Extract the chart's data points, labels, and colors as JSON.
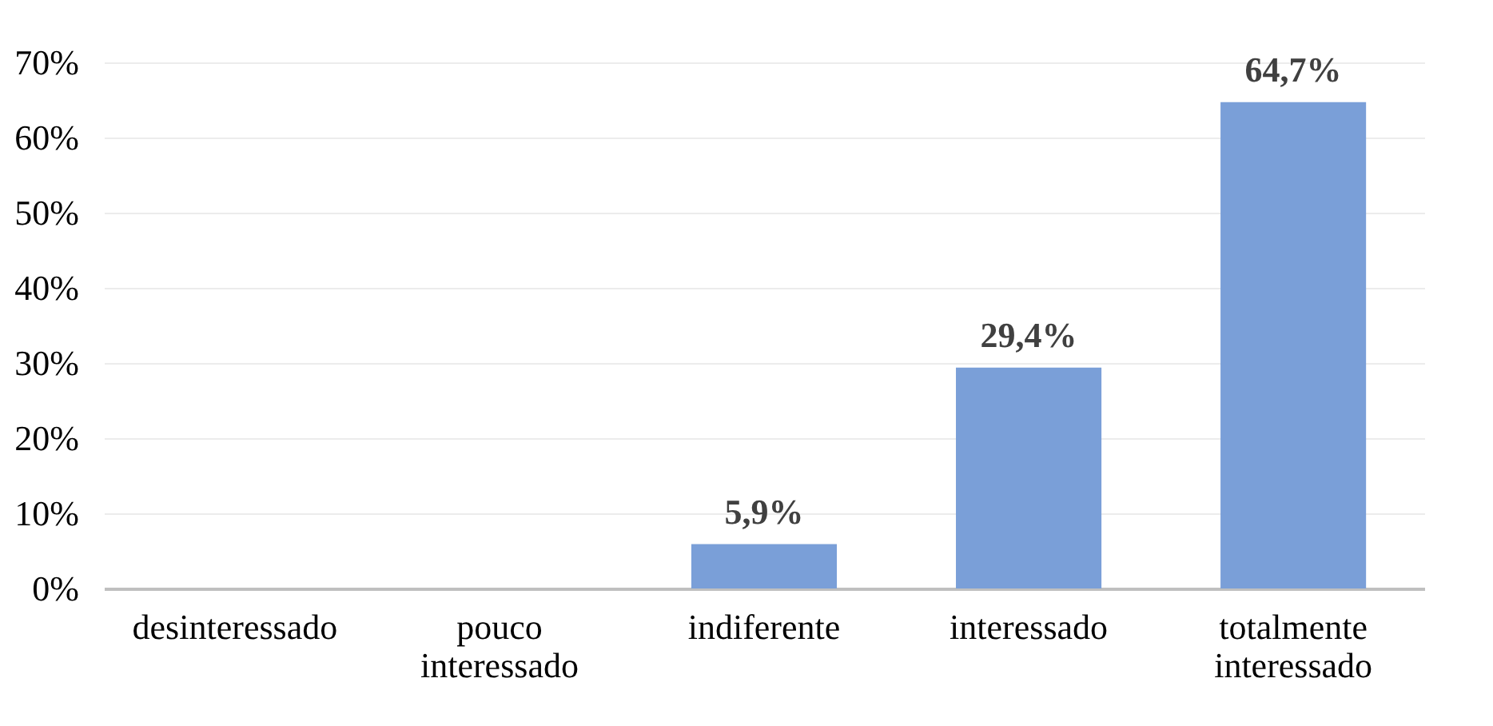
{
  "chart_data": {
    "type": "bar",
    "categories": [
      "desinteressado",
      "pouco interessado",
      "indiferente",
      "interessado",
      "totalmente interessado"
    ],
    "values": [
      0,
      0,
      5.9,
      29.4,
      64.7
    ],
    "value_labels": [
      null,
      null,
      "5,9%",
      "29,4%",
      "64,7%"
    ],
    "color": "#7a9fd8",
    "ylim": [
      0,
      70
    ],
    "yticks": [
      {
        "value": 0,
        "label": "0%"
      },
      {
        "value": 10,
        "label": "10%"
      },
      {
        "value": 20,
        "label": "20%"
      },
      {
        "value": 30,
        "label": "30%"
      },
      {
        "value": 40,
        "label": "40%"
      },
      {
        "value": 50,
        "label": "50%"
      },
      {
        "value": 60,
        "label": "60%"
      },
      {
        "value": 70,
        "label": "70%"
      }
    ],
    "grid": "y"
  }
}
